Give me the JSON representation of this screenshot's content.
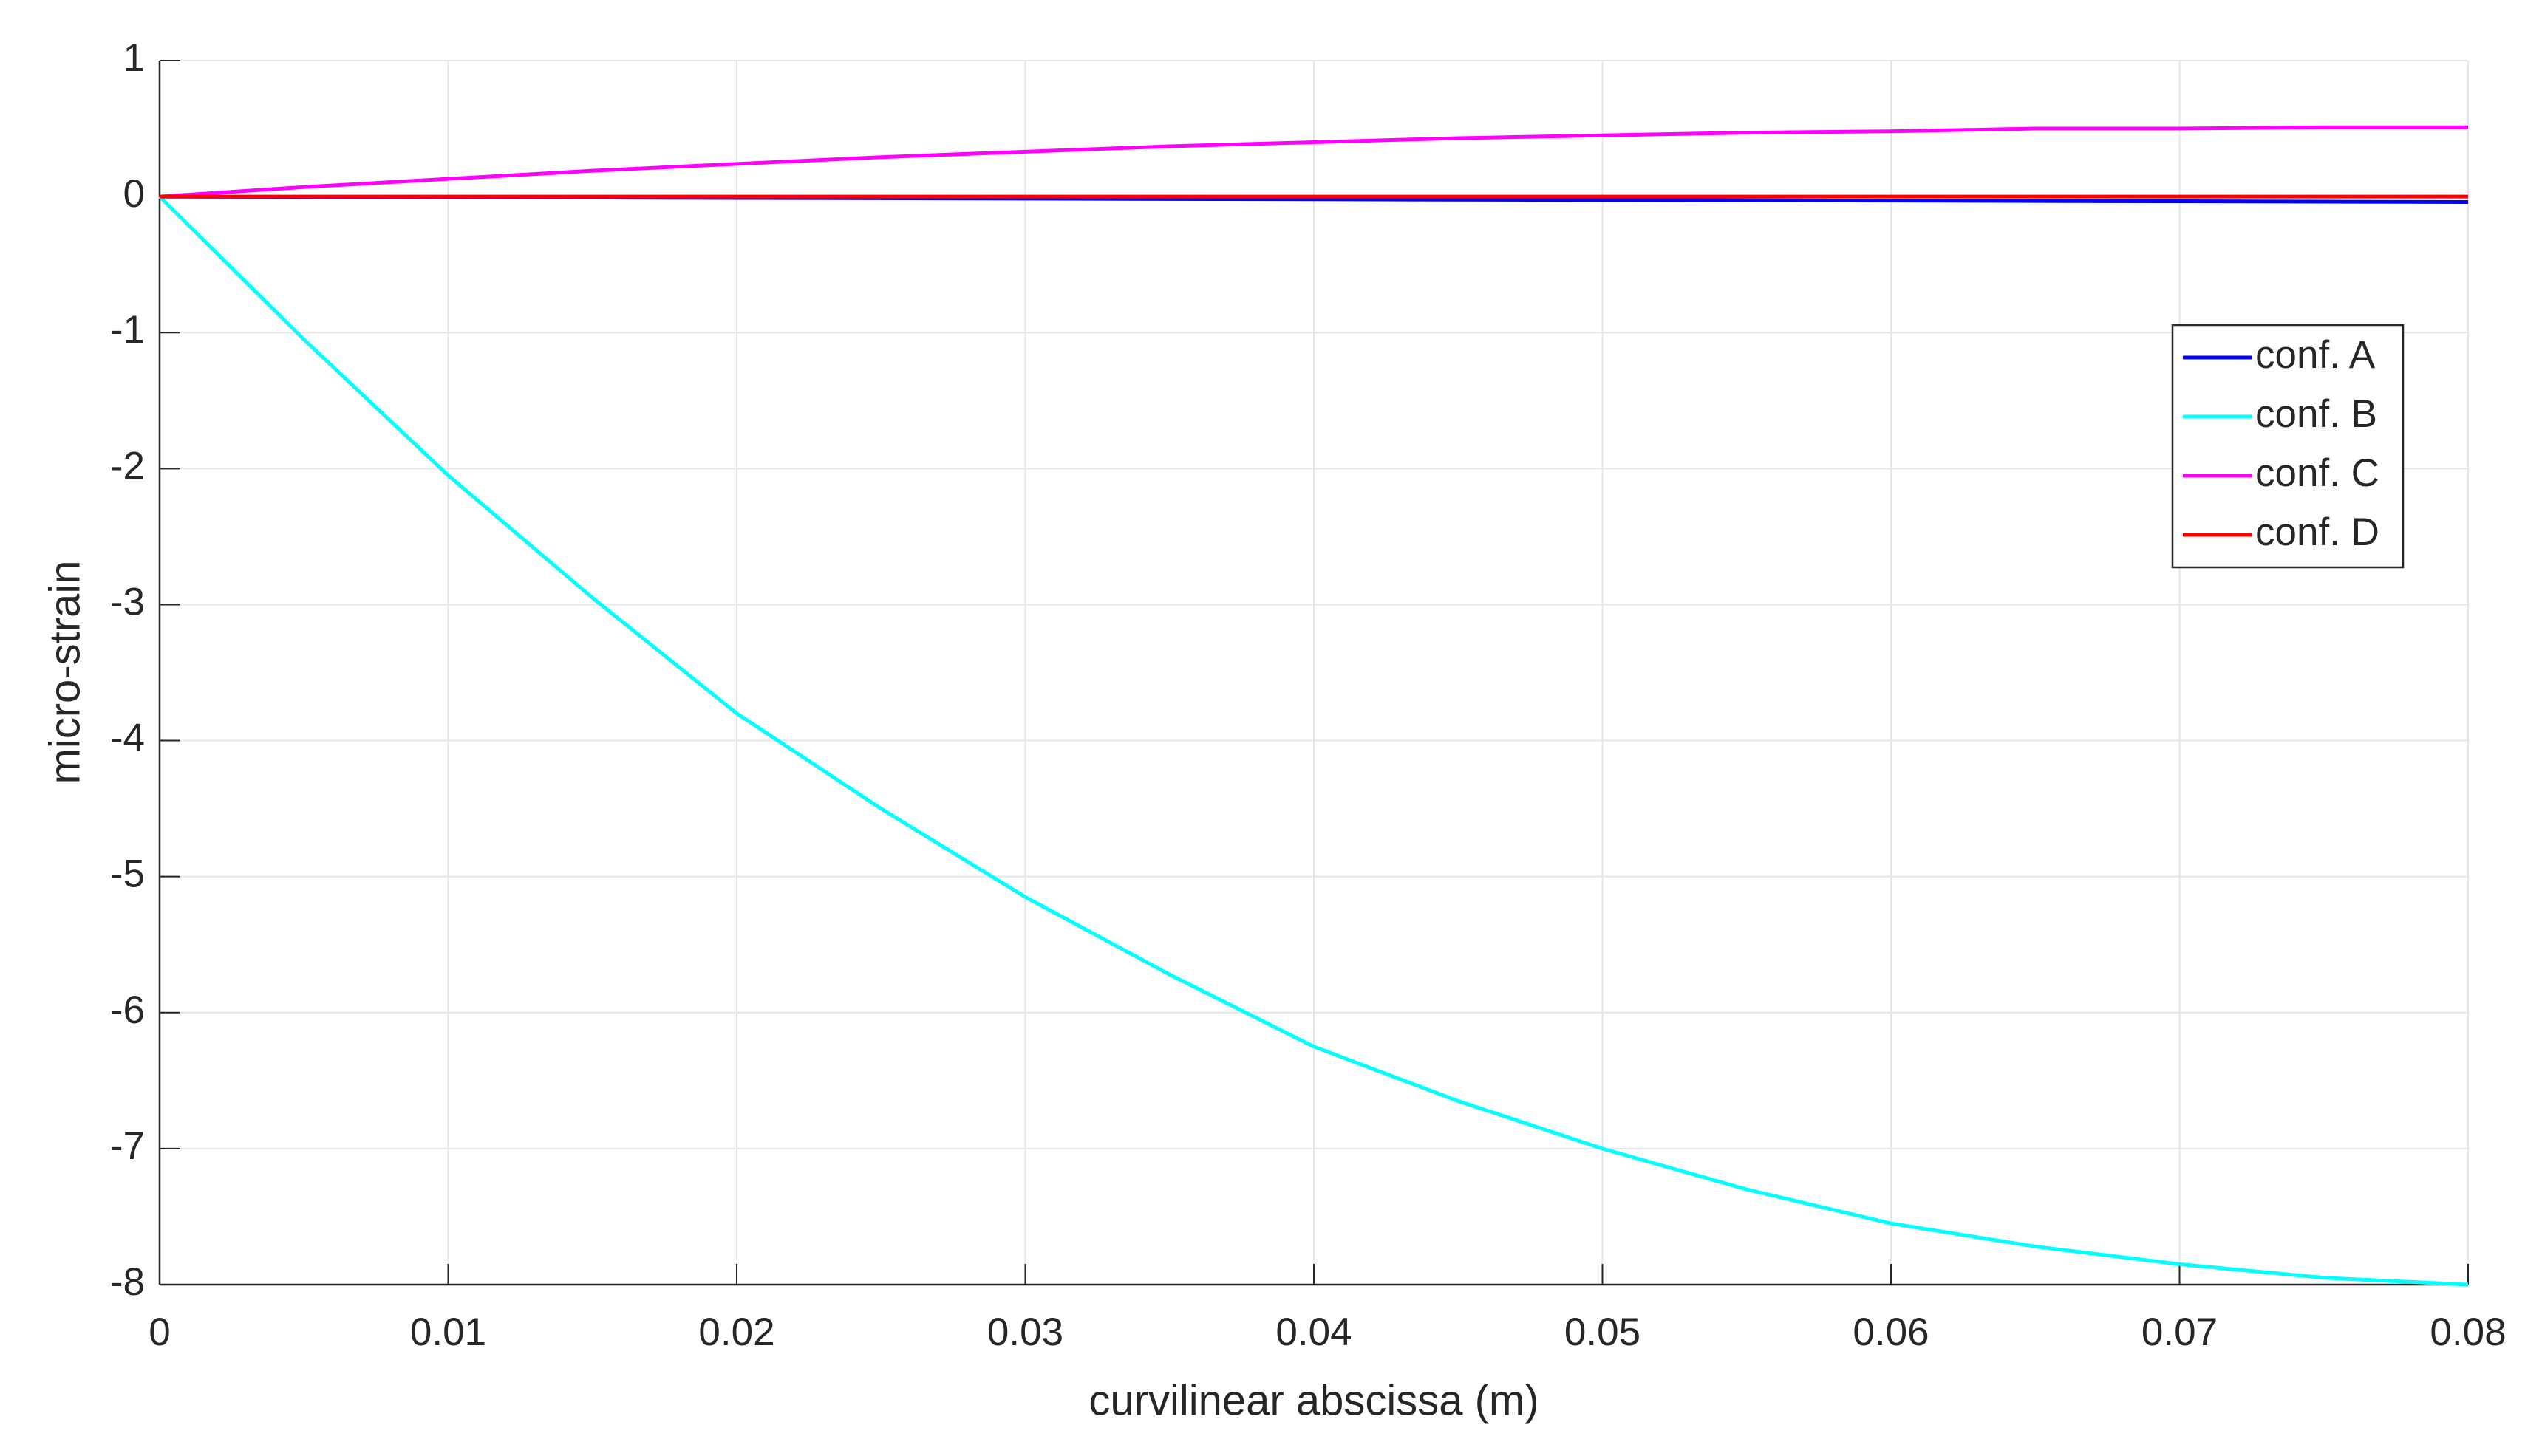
{
  "chart_data": {
    "type": "line",
    "xlabel": "curvilinear abscissa (m)",
    "ylabel": "micro-strain",
    "x": [
      0,
      0.005,
      0.01,
      0.015,
      0.02,
      0.025,
      0.03,
      0.035,
      0.04,
      0.045,
      0.05,
      0.055,
      0.06,
      0.065,
      0.07,
      0.075,
      0.08
    ],
    "series": [
      {
        "name": "conf. A",
        "color": "#0000ff",
        "values": [
          0,
          -0.0025,
          -0.005,
          -0.0075,
          -0.01,
          -0.0125,
          -0.015,
          -0.0175,
          -0.02,
          -0.0225,
          -0.025,
          -0.0275,
          -0.03,
          -0.0325,
          -0.035,
          -0.0375,
          -0.04
        ]
      },
      {
        "name": "conf. B",
        "color": "#00ffff",
        "values": [
          0,
          -1.05,
          -2.05,
          -2.95,
          -3.8,
          -4.5,
          -5.15,
          -5.72,
          -6.25,
          -6.65,
          -7.0,
          -7.3,
          -7.55,
          -7.72,
          -7.85,
          -7.95,
          -8.0
        ]
      },
      {
        "name": "conf. C",
        "color": "#ff00ff",
        "values": [
          0,
          0.07,
          0.13,
          0.19,
          0.24,
          0.29,
          0.33,
          0.37,
          0.4,
          0.43,
          0.45,
          0.47,
          0.48,
          0.5,
          0.5,
          0.51,
          0.51
        ]
      },
      {
        "name": "conf. D",
        "color": "#ff0000",
        "values": [
          0,
          0,
          0,
          0,
          0,
          0,
          0,
          0,
          0,
          0,
          0,
          0,
          0,
          0,
          0,
          0,
          0
        ]
      }
    ],
    "xlim": [
      0,
      0.08
    ],
    "xticks": [
      0,
      0.01,
      0.02,
      0.03,
      0.04,
      0.05,
      0.06,
      0.07,
      0.08
    ],
    "ylim": [
      -8,
      1
    ],
    "yticks": [
      -8,
      -7,
      -6,
      -5,
      -4,
      -3,
      -2,
      -1,
      0,
      1
    ],
    "grid": true,
    "legend": "right"
  }
}
